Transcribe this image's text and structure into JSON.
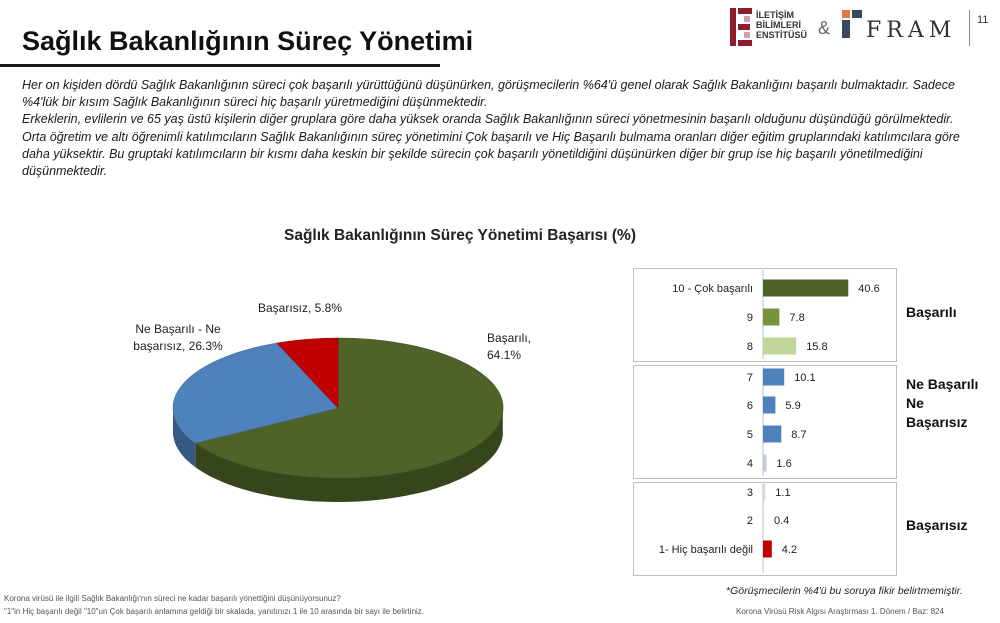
{
  "header": {
    "title": "Sağlık Bakanlığının Süreç Yönetimi",
    "page_number": "11",
    "logo1_lines": [
      "İLETİŞİM",
      "BİLİMLERİ",
      "ENSTİTÜSÜ"
    ],
    "amp": "&",
    "logo2_text": "FRAM"
  },
  "intro": [
    "Her on kişiden dördü Sağlık Bakanlığının süreci çok başarılı yürüttüğünü düşünürken, görüşmecilerin %64'ü genel olarak Sağlık Bakanlığını başarılı bulmaktadır. Sadece %4'lük bir kısım Sağlık Bakanlığının süreci hiç başarılı yüretmediğini düşünmektedir.",
    "Erkeklerin, evlilerin ve 65 yaş üstü kişilerin diğer gruplara göre daha yüksek oranda Sağlık Bakanlığının süreci yönetmesinin başarılı olduğunu düşündüğü görülmektedir.",
    "Orta öğretim ve altı öğrenimli katılımcıların Sağlık Bakanlığının süreç yönetimini Çok başarılı ve Hiç Başarılı bulmama oranları diğer eğitim gruplarındaki katılımcılara göre daha yüksektir. Bu gruptaki katılımcıların bir kısmı daha keskin bir şekilde sürecin çok başarılı yönetildiğini düşünürken diğer bir grup ise hiç başarılı yönetilmediğini düşünmektedir."
  ],
  "chart_data": [
    {
      "type": "pie",
      "title": "Sağlık Bakanlığının Süreç Yönetimi Başarısı (%)",
      "slices": [
        {
          "label": "Başarılı,",
          "value_label": "64.1%",
          "value": 64.1,
          "color": "#4f6228"
        },
        {
          "label": "Ne Başarılı - Ne başarısız,",
          "value_label": "26.3%",
          "value": 26.3,
          "color": "#4f81bd"
        },
        {
          "label": "Başarısız,",
          "value_label": "5.8%",
          "value": 5.8,
          "color": "#c00000"
        }
      ]
    },
    {
      "type": "bar",
      "orientation": "horizontal",
      "categories": [
        "10 - Çok başarılı",
        "9",
        "8",
        "7",
        "6",
        "5",
        "4",
        "3",
        "2",
        "1- Hiç başarılı değil"
      ],
      "values": [
        40.6,
        7.8,
        15.8,
        10.1,
        5.9,
        8.7,
        1.6,
        1.1,
        0.4,
        4.2
      ],
      "value_labels": [
        "40.6",
        "7.8",
        "15.8",
        "10.1",
        "5.9",
        "8.7",
        "1.6",
        "1.1",
        "0.4",
        "4.2"
      ],
      "colors": [
        "#4f6228",
        "#77933c",
        "#c3d69b",
        "#4f81bd",
        "#4f81bd",
        "#4f81bd",
        "#b9cde5",
        "#d9d9d9",
        "#d9d9d9",
        "#c00000"
      ],
      "groups": [
        {
          "label": "Başarılı",
          "lines": [
            "Başarılı"
          ]
        },
        {
          "label": "Ne Başarılı Ne Başarısız",
          "lines": [
            "Ne Başarılı",
            "Ne",
            "Başarısız"
          ]
        },
        {
          "label": "Başarısız",
          "lines": [
            "Başarısız"
          ]
        }
      ]
    }
  ],
  "footnotes": {
    "right_note": "*Görüşmecilerin %4'ü bu soruya fikir belirtmemiştir.",
    "left_line1": "Korona virüsü ile ilgili Sağlık Bakanlığı'nın süreci ne kadar başarılı yönettiğini düşünüyorsunuz?",
    "left_line2": "\"1\"in Hiç başarılı değil \"10\"un Çok başarılı anlamına geldiği bir skalada, yanıtınızı 1 ile 10 arasında bir sayı ile belirtiniz.",
    "right_source": "Korona Virüsü Risk Algısı Araştırması 1. Dönem / Baz: 824"
  }
}
